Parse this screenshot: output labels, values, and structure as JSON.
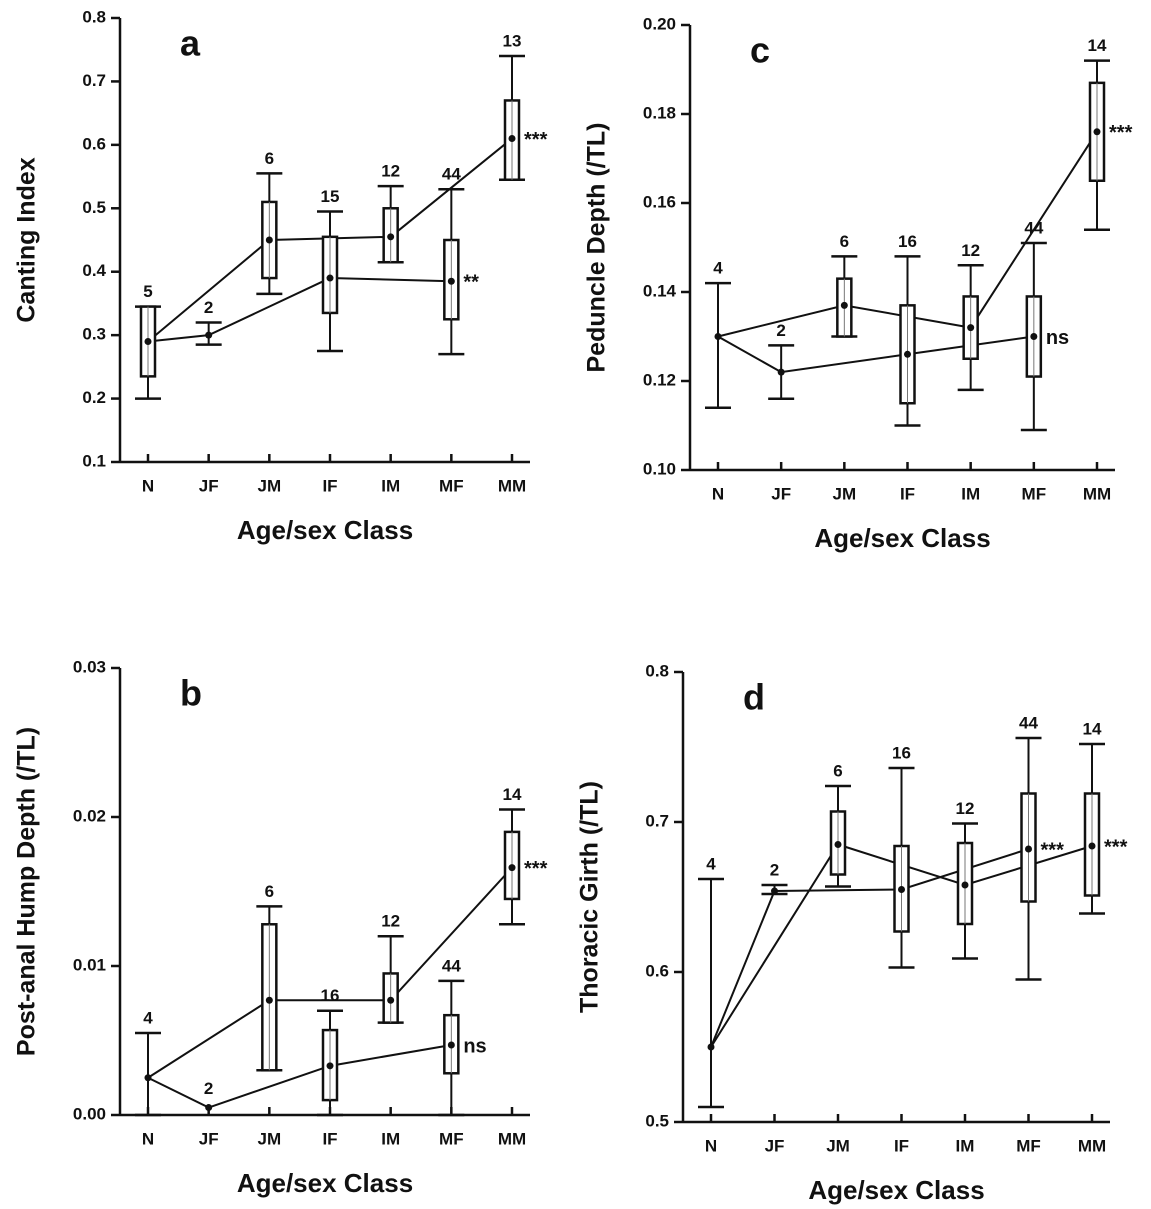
{
  "chart_data": [
    {
      "type": "box",
      "title": "a",
      "ylabel": "Canting Index",
      "xlabel": "Age/sex Class",
      "categories": [
        "N",
        "JF",
        "JM",
        "IF",
        "IM",
        "MF",
        "MM"
      ],
      "means": [
        0.29,
        0.3,
        0.45,
        0.39,
        0.455,
        0.385,
        0.61
      ],
      "box_low": [
        0.235,
        null,
        0.39,
        0.335,
        0.415,
        0.325,
        0.545
      ],
      "box_high": [
        0.345,
        null,
        0.51,
        0.455,
        0.5,
        0.45,
        0.67
      ],
      "whisker_low": [
        0.2,
        0.285,
        0.365,
        0.275,
        0.415,
        0.27,
        0.545
      ],
      "whisker_high": [
        0.345,
        0.32,
        0.555,
        0.495,
        0.535,
        0.53,
        0.74
      ],
      "n": [
        5,
        2,
        6,
        15,
        12,
        44,
        13
      ],
      "significance": [
        null,
        null,
        null,
        null,
        null,
        "**",
        "***"
      ],
      "ylim": [
        0.1,
        0.8
      ],
      "yticks": [
        0.1,
        0.2,
        0.3,
        0.4,
        0.5,
        0.6,
        0.7,
        0.8
      ]
    },
    {
      "type": "box",
      "title": "b",
      "ylabel": "Post-anal Hump Depth (/TL)",
      "xlabel": "Age/sex Class",
      "categories": [
        "N",
        "JF",
        "JM",
        "IF",
        "IM",
        "MF",
        "MM"
      ],
      "means": [
        0.0025,
        0.0005,
        0.0077,
        0.0033,
        0.0077,
        0.0047,
        0.0166
      ],
      "box_low": [
        null,
        null,
        0.003,
        0.001,
        0.0062,
        0.0028,
        0.0145
      ],
      "box_high": [
        null,
        null,
        0.0128,
        0.0057,
        0.0095,
        0.0067,
        0.019
      ],
      "whisker_low": [
        0,
        null,
        0.003,
        0,
        0.0062,
        0,
        0.0128
      ],
      "whisker_high": [
        0.0055,
        null,
        0.014,
        0.007,
        0.012,
        0.009,
        0.0205
      ],
      "n": [
        4,
        2,
        6,
        16,
        12,
        44,
        14
      ],
      "significance": [
        null,
        null,
        null,
        null,
        null,
        "ns",
        "***"
      ],
      "ylim": [
        0,
        0.03
      ],
      "yticks": [
        {
          "value": 0,
          "label": "0.00"
        },
        0.01,
        0.02,
        0.03
      ]
    },
    {
      "type": "box",
      "title": "c",
      "ylabel": "Peduncle Depth (/TL)",
      "xlabel": "Age/sex Class",
      "categories": [
        "N",
        "JF",
        "JM",
        "IF",
        "IM",
        "MF",
        "MM"
      ],
      "means": [
        0.13,
        0.122,
        0.137,
        0.126,
        0.132,
        0.13,
        0.176
      ],
      "box_low": [
        null,
        null,
        0.13,
        0.115,
        0.125,
        0.121,
        0.165
      ],
      "box_high": [
        null,
        null,
        0.143,
        0.137,
        0.139,
        0.139,
        0.187
      ],
      "whisker_low": [
        0.114,
        0.116,
        0.13,
        0.11,
        0.118,
        0.109,
        0.154
      ],
      "whisker_high": [
        0.142,
        0.128,
        0.148,
        0.148,
        0.146,
        0.151,
        0.192
      ],
      "n": [
        4,
        2,
        6,
        16,
        12,
        44,
        14
      ],
      "significance": [
        null,
        null,
        null,
        null,
        null,
        "ns",
        "***"
      ],
      "ylim": [
        0.1,
        0.2
      ],
      "yticks": [
        {
          "value": 0.1,
          "label": "0.10"
        },
        0.12,
        0.14,
        0.16,
        0.18,
        {
          "value": 0.2,
          "label": "0.20"
        }
      ]
    },
    {
      "type": "box",
      "title": "d",
      "ylabel": "Thoracic Girth (/TL)",
      "xlabel": "Age/sex Class",
      "categories": [
        "N",
        "JF",
        "JM",
        "IF",
        "IM",
        "MF",
        "MM"
      ],
      "means": [
        0.55,
        0.654,
        0.685,
        0.655,
        0.658,
        0.682,
        0.684
      ],
      "box_low": [
        null,
        null,
        0.665,
        0.627,
        0.632,
        0.647,
        0.651
      ],
      "box_high": [
        null,
        null,
        0.707,
        0.684,
        0.686,
        0.719,
        0.719
      ],
      "whisker_low": [
        0.51,
        0.652,
        0.657,
        0.603,
        0.609,
        0.595,
        0.639
      ],
      "whisker_high": [
        0.662,
        0.658,
        0.724,
        0.736,
        0.699,
        0.756,
        0.752
      ],
      "n": [
        4,
        2,
        6,
        16,
        12,
        44,
        14
      ],
      "significance": [
        null,
        null,
        null,
        null,
        null,
        "***",
        "***"
      ],
      "ylim": [
        0.5,
        0.8
      ],
      "yticks": [
        0.5,
        0.6,
        0.7,
        0.8
      ]
    }
  ]
}
